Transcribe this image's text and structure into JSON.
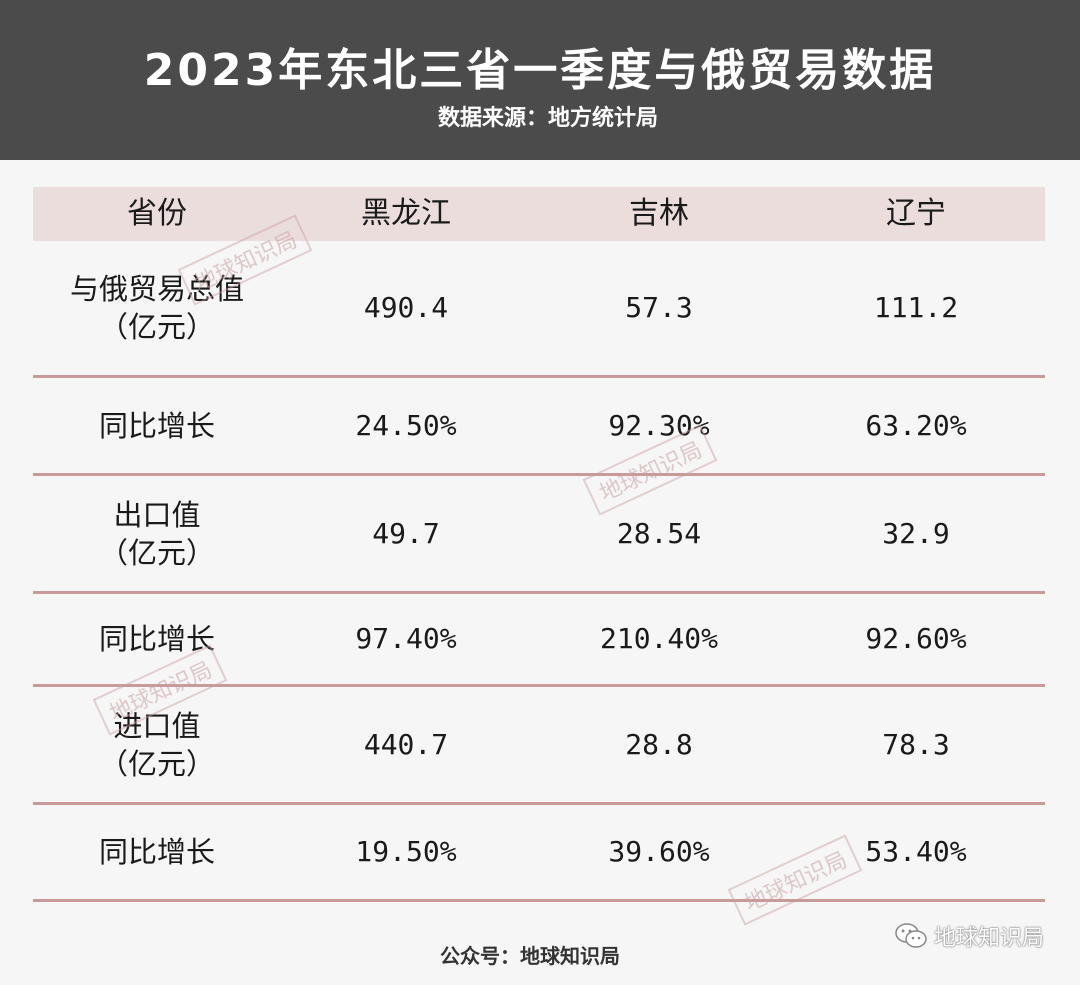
{
  "title": "2023年东北三省一季度与俄贸易数据",
  "subtitle": "数据来源：地方统计局",
  "footer": "公众号：地球知识局",
  "watermark": "地球知识局",
  "brand": "地球知识局",
  "colors": {
    "header_bg": "#4b4b4b",
    "table_head_bg": "#ecdddd",
    "row_divider": "#c99a9a",
    "page_bg": "#f6f6f6"
  },
  "chart_data": {
    "type": "table",
    "columns": [
      "省份",
      "黑龙江",
      "吉林",
      "辽宁"
    ],
    "rows": [
      {
        "label": [
          "与俄贸易总值",
          "（亿元）"
        ],
        "values": [
          "490.4",
          "57.3",
          "111.2"
        ]
      },
      {
        "label": [
          "同比增长"
        ],
        "values": [
          "24.50%",
          "92.30%",
          "63.20%"
        ]
      },
      {
        "label": [
          "出口值",
          "（亿元）"
        ],
        "values": [
          "49.7",
          "28.54",
          "32.9"
        ]
      },
      {
        "label": [
          "同比增长"
        ],
        "values": [
          "97.40%",
          "210.40%",
          "92.60%"
        ]
      },
      {
        "label": [
          "进口值",
          "（亿元）"
        ],
        "values": [
          "440.7",
          "28.8",
          "78.3"
        ]
      },
      {
        "label": [
          "同比增长"
        ],
        "values": [
          "19.50%",
          "39.60%",
          "53.40%"
        ]
      }
    ]
  }
}
